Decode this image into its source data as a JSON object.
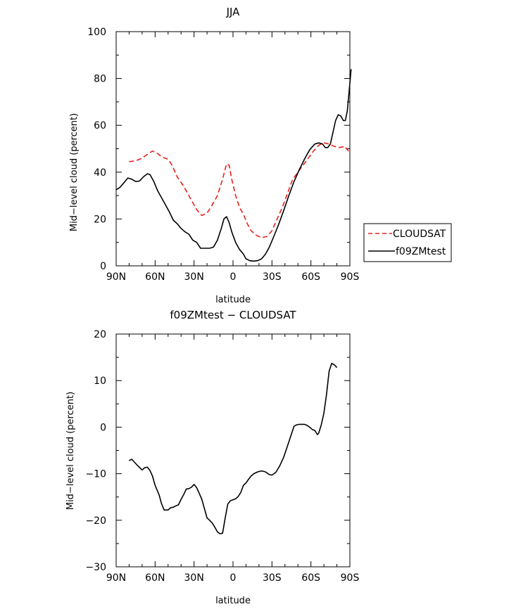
{
  "chart_data": [
    {
      "type": "line",
      "title": "JJA",
      "xlabel": "latitude",
      "ylabel": "Mid−level cloud (percent)",
      "x_ticks": [
        {
          "value": 90,
          "label": "90N"
        },
        {
          "value": 60,
          "label": "60N"
        },
        {
          "value": 30,
          "label": "30N"
        },
        {
          "value": 0,
          "label": "0"
        },
        {
          "value": -30,
          "label": "30S"
        },
        {
          "value": -60,
          "label": "60S"
        },
        {
          "value": -90,
          "label": "90S"
        }
      ],
      "y_ticks": [
        {
          "value": 0,
          "label": "0"
        },
        {
          "value": 20,
          "label": "20"
        },
        {
          "value": 40,
          "label": "40"
        },
        {
          "value": 60,
          "label": "60"
        },
        {
          "value": 80,
          "label": "80"
        },
        {
          "value": 100,
          "label": "100"
        }
      ],
      "xlim": [
        90,
        -90
      ],
      "ylim": [
        0,
        100
      ],
      "legend_position": "right",
      "series": [
        {
          "name": "CLOUDSAT",
          "color": "#e8201c",
          "dash": "dashed",
          "points": [
            [
              80,
              44.5
            ],
            [
              75,
              44.8
            ],
            [
              70,
              46
            ],
            [
              65,
              48
            ],
            [
              62,
              49
            ],
            [
              58,
              48
            ],
            [
              55,
              46.5
            ],
            [
              50,
              45.5
            ],
            [
              47,
              43
            ],
            [
              43,
              38
            ],
            [
              38,
              34
            ],
            [
              33,
              29
            ],
            [
              28,
              24
            ],
            [
              24,
              21.5
            ],
            [
              20,
              22.5
            ],
            [
              16,
              26
            ],
            [
              12,
              30
            ],
            [
              8,
              37
            ],
            [
              5,
              43.5
            ],
            [
              3,
              43
            ],
            [
              1,
              37
            ],
            [
              -2,
              30
            ],
            [
              -5,
              25
            ],
            [
              -8,
              22
            ],
            [
              -11,
              18
            ],
            [
              -14,
              15
            ],
            [
              -18,
              13
            ],
            [
              -22,
              12
            ],
            [
              -26,
              12.5
            ],
            [
              -30,
              15
            ],
            [
              -34,
              20
            ],
            [
              -38,
              25
            ],
            [
              -42,
              31
            ],
            [
              -46,
              37
            ],
            [
              -50,
              40
            ],
            [
              -54,
              43
            ],
            [
              -58,
              46
            ],
            [
              -62,
              49
            ],
            [
              -66,
              51.5
            ],
            [
              -70,
              52.5
            ],
            [
              -74,
              52
            ],
            [
              -78,
              51
            ],
            [
              -82,
              50.5
            ],
            [
              -86,
              51
            ],
            [
              -89,
              49
            ]
          ]
        },
        {
          "name": "f09ZMtest",
          "color": "#000000",
          "dash": "solid",
          "points": [
            [
              90,
              32.5
            ],
            [
              87,
              33.5
            ],
            [
              84,
              35.5
            ],
            [
              81,
              37.5
            ],
            [
              78,
              37
            ],
            [
              75,
              36
            ],
            [
              72,
              36.2
            ],
            [
              69,
              38
            ],
            [
              66,
              39.3
            ],
            [
              64,
              39
            ],
            [
              61,
              36
            ],
            [
              58,
              32
            ],
            [
              55,
              29
            ],
            [
              52,
              26
            ],
            [
              49,
              23
            ],
            [
              46,
              19.5
            ],
            [
              43,
              18
            ],
            [
              40,
              16
            ],
            [
              37,
              14.5
            ],
            [
              34,
              13.5
            ],
            [
              31,
              11
            ],
            [
              28,
              10
            ],
            [
              25,
              7.5
            ],
            [
              22,
              7.5
            ],
            [
              18,
              7.5
            ],
            [
              15,
              8
            ],
            [
              12,
              11
            ],
            [
              9,
              16
            ],
            [
              7,
              20
            ],
            [
              5,
              21
            ],
            [
              3,
              18.5
            ],
            [
              1,
              14.5
            ],
            [
              -2,
              10
            ],
            [
              -5,
              7
            ],
            [
              -8,
              5
            ],
            [
              -10,
              3
            ],
            [
              -13,
              2.2
            ],
            [
              -16,
              2
            ],
            [
              -19,
              2.2
            ],
            [
              -22,
              3
            ],
            [
              -25,
              5
            ],
            [
              -28,
              8
            ],
            [
              -31,
              12
            ],
            [
              -35,
              17.5
            ],
            [
              -39,
              23.5
            ],
            [
              -43,
              30
            ],
            [
              -47,
              36
            ],
            [
              -51,
              41
            ],
            [
              -55,
              45.5
            ],
            [
              -59,
              49.5
            ],
            [
              -63,
              52
            ],
            [
              -66,
              52.5
            ],
            [
              -69,
              52
            ],
            [
              -71,
              50.5
            ],
            [
              -73,
              50.5
            ],
            [
              -75,
              52
            ],
            [
              -77,
              57
            ],
            [
              -79,
              62
            ],
            [
              -81,
              64.5
            ],
            [
              -83,
              64
            ],
            [
              -85,
              62
            ],
            [
              -86.5,
              62
            ],
            [
              -88,
              66
            ],
            [
              -89,
              72
            ],
            [
              -90,
              78
            ],
            [
              -91,
              84
            ]
          ]
        }
      ]
    },
    {
      "type": "line",
      "title": "f09ZMtest − CLOUDSAT",
      "xlabel": "latitude",
      "ylabel": "Mid−level cloud (percent)",
      "x_ticks": [
        {
          "value": 90,
          "label": "90N"
        },
        {
          "value": 60,
          "label": "60N"
        },
        {
          "value": 30,
          "label": "30N"
        },
        {
          "value": 0,
          "label": "0"
        },
        {
          "value": -30,
          "label": "30S"
        },
        {
          "value": -60,
          "label": "60S"
        },
        {
          "value": -90,
          "label": "90S"
        }
      ],
      "y_ticks": [
        {
          "value": -30,
          "label": "−30"
        },
        {
          "value": -20,
          "label": "−20"
        },
        {
          "value": -10,
          "label": "−10"
        },
        {
          "value": 0,
          "label": "0"
        },
        {
          "value": 10,
          "label": "10"
        },
        {
          "value": 20,
          "label": "20"
        }
      ],
      "xlim": [
        90,
        -90
      ],
      "ylim": [
        -30,
        20
      ],
      "series": [
        {
          "color": "#000000",
          "dash": "solid",
          "points": [
            [
              80,
              -7.2
            ],
            [
              78,
              -6.9
            ],
            [
              76,
              -7.5
            ],
            [
              73,
              -8.4
            ],
            [
              70,
              -9.2
            ],
            [
              68,
              -8.7
            ],
            [
              66,
              -8.6
            ],
            [
              64,
              -9.3
            ],
            [
              62,
              -10.5
            ],
            [
              60,
              -12.5
            ],
            [
              57,
              -14.5
            ],
            [
              55,
              -16.5
            ],
            [
              53,
              -17.8
            ],
            [
              50,
              -17.8
            ],
            [
              48,
              -17.3
            ],
            [
              46,
              -17.2
            ],
            [
              44,
              -16.9
            ],
            [
              42,
              -16.7
            ],
            [
              40,
              -15.5
            ],
            [
              38,
              -14.5
            ],
            [
              36,
              -13.3
            ],
            [
              34,
              -13.2
            ],
            [
              32,
              -12.9
            ],
            [
              30,
              -12.3
            ],
            [
              28,
              -13
            ],
            [
              26,
              -14.2
            ],
            [
              24,
              -15.5
            ],
            [
              22,
              -17.5
            ],
            [
              20,
              -19.5
            ],
            [
              18,
              -20
            ],
            [
              16,
              -20.6
            ],
            [
              14,
              -21.5
            ],
            [
              12,
              -22.5
            ],
            [
              10,
              -22.9
            ],
            [
              8,
              -22.8
            ],
            [
              6,
              -19.5
            ],
            [
              4,
              -16.5
            ],
            [
              2,
              -15.8
            ],
            [
              0,
              -15.6
            ],
            [
              -2,
              -15.4
            ],
            [
              -4,
              -14.9
            ],
            [
              -6,
              -14
            ],
            [
              -8,
              -12.5
            ],
            [
              -10,
              -12
            ],
            [
              -12,
              -11.2
            ],
            [
              -14,
              -10.5
            ],
            [
              -16,
              -10
            ],
            [
              -19,
              -9.6
            ],
            [
              -22,
              -9.4
            ],
            [
              -25,
              -9.6
            ],
            [
              -28,
              -10.2
            ],
            [
              -30,
              -10.3
            ],
            [
              -33,
              -9.7
            ],
            [
              -36,
              -8.3
            ],
            [
              -39,
              -6.5
            ],
            [
              -42,
              -4
            ],
            [
              -45,
              -1.5
            ],
            [
              -47,
              0.2
            ],
            [
              -49,
              0.5
            ],
            [
              -51,
              0.6
            ],
            [
              -53,
              0.6
            ],
            [
              -55,
              0.6
            ],
            [
              -57,
              0.4
            ],
            [
              -59,
              0
            ],
            [
              -61,
              -0.5
            ],
            [
              -63,
              -0.7
            ],
            [
              -65,
              -1.6
            ],
            [
              -66,
              -1.3
            ],
            [
              -68,
              0.5
            ],
            [
              -70,
              3
            ],
            [
              -72,
              7
            ],
            [
              -74,
              12
            ],
            [
              -76,
              13.7
            ],
            [
              -78,
              13.4
            ],
            [
              -80,
              12.8
            ]
          ]
        }
      ]
    }
  ]
}
